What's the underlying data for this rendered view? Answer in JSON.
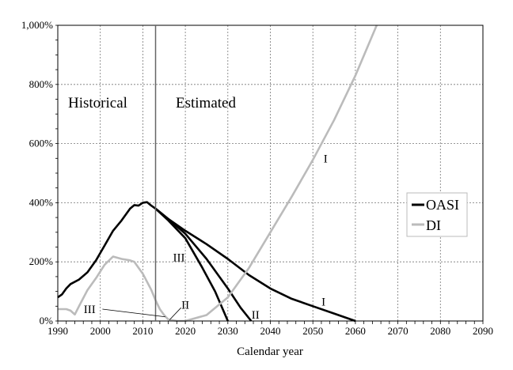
{
  "chart_data": {
    "type": "line",
    "xlabel": "Calendar year",
    "ylabel": "",
    "xlim": [
      1990,
      2090
    ],
    "ylim": [
      0,
      1000
    ],
    "xticks": [
      1990,
      2000,
      2010,
      2020,
      2030,
      2040,
      2050,
      2060,
      2070,
      2080,
      2090
    ],
    "yticks": [
      0,
      200,
      400,
      600,
      800,
      1000
    ],
    "ytick_labels": [
      "0%",
      "200%",
      "400%",
      "600%",
      "800%",
      "1,000%"
    ],
    "grid": true,
    "divider_year": 2013,
    "region_labels": {
      "historical": "Historical",
      "estimated": "Estimated"
    },
    "legend": {
      "position": "right",
      "entries": [
        {
          "name": "OASI",
          "color": "#000000"
        },
        {
          "name": "DI",
          "color": "#bbbbbb"
        }
      ]
    },
    "series": [
      {
        "name": "OASI historical",
        "color": "#000000",
        "points": [
          [
            1990,
            80
          ],
          [
            1991,
            90
          ],
          [
            1992,
            110
          ],
          [
            1993,
            125
          ],
          [
            1995,
            140
          ],
          [
            1997,
            165
          ],
          [
            1999,
            205
          ],
          [
            2001,
            255
          ],
          [
            2003,
            305
          ],
          [
            2005,
            340
          ],
          [
            2007,
            380
          ],
          [
            2008,
            392
          ],
          [
            2009,
            390
          ],
          [
            2010,
            400
          ],
          [
            2011,
            402
          ],
          [
            2012,
            390
          ],
          [
            2013,
            380
          ]
        ]
      },
      {
        "name": "OASI I",
        "color": "#000000",
        "points": [
          [
            2013,
            380
          ],
          [
            2016,
            345
          ],
          [
            2020,
            305
          ],
          [
            2025,
            260
          ],
          [
            2030,
            210
          ],
          [
            2035,
            155
          ],
          [
            2040,
            110
          ],
          [
            2045,
            75
          ],
          [
            2050,
            50
          ],
          [
            2055,
            25
          ],
          [
            2060,
            0
          ]
        ]
      },
      {
        "name": "OASI II",
        "color": "#000000",
        "points": [
          [
            2013,
            380
          ],
          [
            2016,
            345
          ],
          [
            2020,
            295
          ],
          [
            2025,
            210
          ],
          [
            2030,
            110
          ],
          [
            2033,
            45
          ],
          [
            2035.5,
            0
          ]
        ]
      },
      {
        "name": "OASI III",
        "color": "#000000",
        "points": [
          [
            2013,
            380
          ],
          [
            2016,
            340
          ],
          [
            2020,
            280
          ],
          [
            2024,
            180
          ],
          [
            2027,
            100
          ],
          [
            2030,
            0
          ]
        ]
      },
      {
        "name": "DI historical",
        "color": "#bbbbbb",
        "points": [
          [
            1990,
            40
          ],
          [
            1992,
            40
          ],
          [
            1993,
            35
          ],
          [
            1994,
            22
          ],
          [
            1995,
            50
          ],
          [
            1997,
            105
          ],
          [
            1999,
            145
          ],
          [
            2001,
            190
          ],
          [
            2003,
            218
          ],
          [
            2005,
            210
          ],
          [
            2007,
            205
          ],
          [
            2008,
            200
          ],
          [
            2010,
            160
          ],
          [
            2012,
            105
          ],
          [
            2013,
            70
          ],
          [
            2014,
            40
          ],
          [
            2015,
            20
          ],
          [
            2016,
            5
          ]
        ]
      },
      {
        "name": "DI I",
        "color": "#bbbbbb",
        "points": [
          [
            2016,
            5
          ],
          [
            2018,
            0
          ],
          [
            2020,
            0
          ],
          [
            2025,
            20
          ],
          [
            2030,
            80
          ],
          [
            2035,
            180
          ],
          [
            2040,
            300
          ],
          [
            2045,
            420
          ],
          [
            2050,
            545
          ],
          [
            2055,
            680
          ],
          [
            2060,
            830
          ],
          [
            2065,
            1000
          ]
        ]
      }
    ],
    "annotations": [
      {
        "text": "III",
        "x": 2018.5,
        "y": 215
      },
      {
        "text": "I",
        "x": 2053,
        "y": 550
      },
      {
        "text": "I",
        "x": 2052.5,
        "y": 65
      },
      {
        "text": "II",
        "x": 2036.5,
        "y": 22
      },
      {
        "text": "II",
        "x": 2020,
        "y": 55
      },
      {
        "text": "III",
        "x": 1997.5,
        "y": 40
      }
    ]
  }
}
